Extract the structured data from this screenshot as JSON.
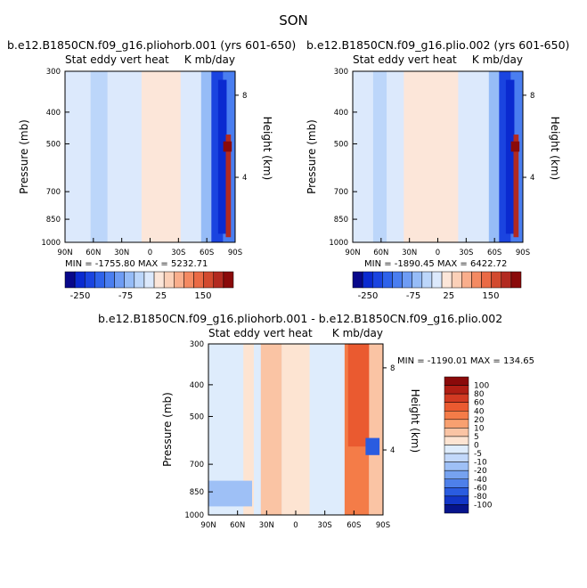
{
  "page": {
    "season": "SON"
  },
  "panels": [
    {
      "title": "b.e12.B1850CN.f09_g16.pliohorb.001 (yrs 601-650)",
      "left_label": "Stat eddy vert heat",
      "right_label": "K mb/day",
      "stats": "MIN = -1755.80   MAX = 5232.71"
    },
    {
      "title": "b.e12.B1850CN.f09_g16.plio.002 (yrs 601-650)",
      "left_label": "Stat eddy vert heat",
      "right_label": "K mb/day",
      "stats": "MIN = -1890.45   MAX = 6422.72"
    },
    {
      "title": "b.e12.B1850CN.f09_g16.pliohorb.001 - b.e12.B1850CN.f09_g16.plio.002",
      "left_label": "Stat eddy vert heat",
      "right_label": "K mb/day",
      "stats": "MIN = -1190.01   MAX = 134.65"
    }
  ],
  "chart_data": [
    {
      "type": "heatmap",
      "xlabel": "",
      "ylabel": "Pressure (mb)",
      "y2label": "Height (km)",
      "x_ticks": [
        "90N",
        "60N",
        "30N",
        "0",
        "30S",
        "60S",
        "90S"
      ],
      "y_ticks": [
        "300",
        "400",
        "500",
        "700",
        "850",
        "1000"
      ],
      "y2_ticks": [
        "8",
        "4"
      ],
      "y_scale": "log",
      "colorbar": {
        "orientation": "horizontal",
        "labels": [
          "-250",
          "-75",
          "25",
          "150"
        ],
        "colors": [
          "#08088a",
          "#0a2ad0",
          "#1a44e0",
          "#2e62ea",
          "#4a7ef0",
          "#6e9cf4",
          "#96bcf7",
          "#bcd6fa",
          "#dce9fc",
          "#fce6d9",
          "#fbd0b8",
          "#f9ae8c",
          "#f48a62",
          "#ea6a45",
          "#d24a2f",
          "#b22a20",
          "#8a0a0a"
        ]
      }
    },
    {
      "type": "heatmap",
      "xlabel": "",
      "ylabel": "Pressure (mb)",
      "y2label": "Height (km)",
      "x_ticks": [
        "90N",
        "60N",
        "30N",
        "0",
        "30S",
        "60S",
        "90S"
      ],
      "y_ticks": [
        "300",
        "400",
        "500",
        "700",
        "850",
        "1000"
      ],
      "y2_ticks": [
        "8",
        "4"
      ],
      "y_scale": "log",
      "colorbar": {
        "orientation": "horizontal",
        "labels": [
          "-250",
          "-75",
          "25",
          "150"
        ],
        "colors": [
          "#08088a",
          "#0a2ad0",
          "#1a44e0",
          "#2e62ea",
          "#4a7ef0",
          "#6e9cf4",
          "#96bcf7",
          "#bcd6fa",
          "#dce9fc",
          "#fce6d9",
          "#fbd0b8",
          "#f9ae8c",
          "#f48a62",
          "#ea6a45",
          "#d24a2f",
          "#b22a20",
          "#8a0a0a"
        ]
      }
    },
    {
      "type": "heatmap",
      "xlabel": "",
      "ylabel": "Pressure (mb)",
      "y2label": "Height (km)",
      "x_ticks": [
        "90N",
        "60N",
        "30N",
        "0",
        "30S",
        "60S",
        "90S"
      ],
      "y_ticks": [
        "300",
        "400",
        "500",
        "700",
        "850",
        "1000"
      ],
      "y2_ticks": [
        "8",
        "4"
      ],
      "y_scale": "log",
      "colorbar": {
        "orientation": "vertical",
        "labels": [
          "100",
          "80",
          "60",
          "40",
          "20",
          "10",
          "5",
          "0",
          "-5",
          "-10",
          "-20",
          "-40",
          "-60",
          "-80",
          "-100"
        ],
        "colors": [
          "#8a0a0a",
          "#b01e14",
          "#d23a22",
          "#ea5a30",
          "#f47c48",
          "#f8a070",
          "#fac4a4",
          "#fde4d2",
          "#deecfc",
          "#c2d8fa",
          "#9ec0f6",
          "#76a2f0",
          "#4e80ea",
          "#2a5ce0",
          "#1236c8",
          "#06148c"
        ]
      }
    }
  ]
}
